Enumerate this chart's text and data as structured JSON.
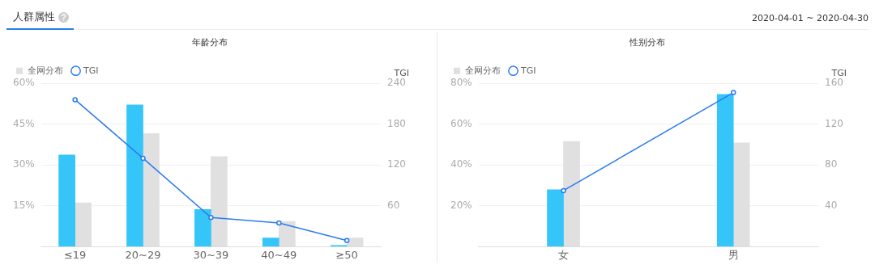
{
  "chart_data": [
    {
      "type": "bar",
      "title": "年龄分布",
      "annotations": [
        "人群属性",
        "2020-04-01 ~ 2020-04-30"
      ],
      "y2label": "TGI",
      "categories": [
        "≤19",
        "20~29",
        "30~39",
        "40~49",
        "≥50"
      ],
      "series": [
        {
          "color": "#36c5f8",
          "values": [
            33.7,
            52.1,
            13.7,
            3.2,
            0.5
          ]
        },
        {
          "name": "全网分布",
          "color": "#e0e0e0",
          "values": [
            16.1,
            41.6,
            33.1,
            9.3,
            3.2
          ]
        },
        {
          "name": "TGI",
          "type": "line",
          "axis": "y2",
          "color": "#2a7bf0",
          "values": [
            216,
            130,
            43,
            35,
            9
          ]
        }
      ],
      "ylim": [
        0,
        60
      ],
      "yticks": [
        {
          "value": 0,
          "label": null
        },
        {
          "value": 15,
          "label": "15%"
        },
        {
          "value": 30,
          "label": "30%"
        },
        {
          "value": 45,
          "label": "45%"
        },
        {
          "value": 60,
          "label": "60%"
        }
      ],
      "y2lim": [
        0,
        240
      ],
      "y2ticks": [
        60,
        120,
        180,
        240
      ],
      "grid": "y",
      "legend": "top left",
      "marker": "circle"
    },
    {
      "type": "bar",
      "title": "性别分布",
      "y2label": "TGI",
      "categories": [
        "女",
        "男"
      ],
      "series": [
        {
          "color": "#36c5f8",
          "values": [
            27.9,
            74.6
          ]
        },
        {
          "name": "全网分布",
          "color": "#e0e0e0",
          "values": [
            51.6,
            50.9
          ]
        },
        {
          "name": "TGI",
          "type": "line",
          "axis": "y2",
          "color": "#2a7bf0",
          "values": [
            55,
            151
          ]
        }
      ],
      "ylim": [
        0,
        80
      ],
      "yticks": [
        {
          "value": 0,
          "label": null
        },
        {
          "value": 20,
          "label": "20%"
        },
        {
          "value": 40,
          "label": "40%"
        },
        {
          "value": 60,
          "label": "60%"
        },
        {
          "value": 80,
          "label": "80%"
        }
      ],
      "y2lim": [
        0,
        160
      ],
      "y2ticks": [
        40,
        80,
        120,
        160
      ],
      "grid": "y",
      "legend": "top left",
      "marker": "circle"
    }
  ]
}
